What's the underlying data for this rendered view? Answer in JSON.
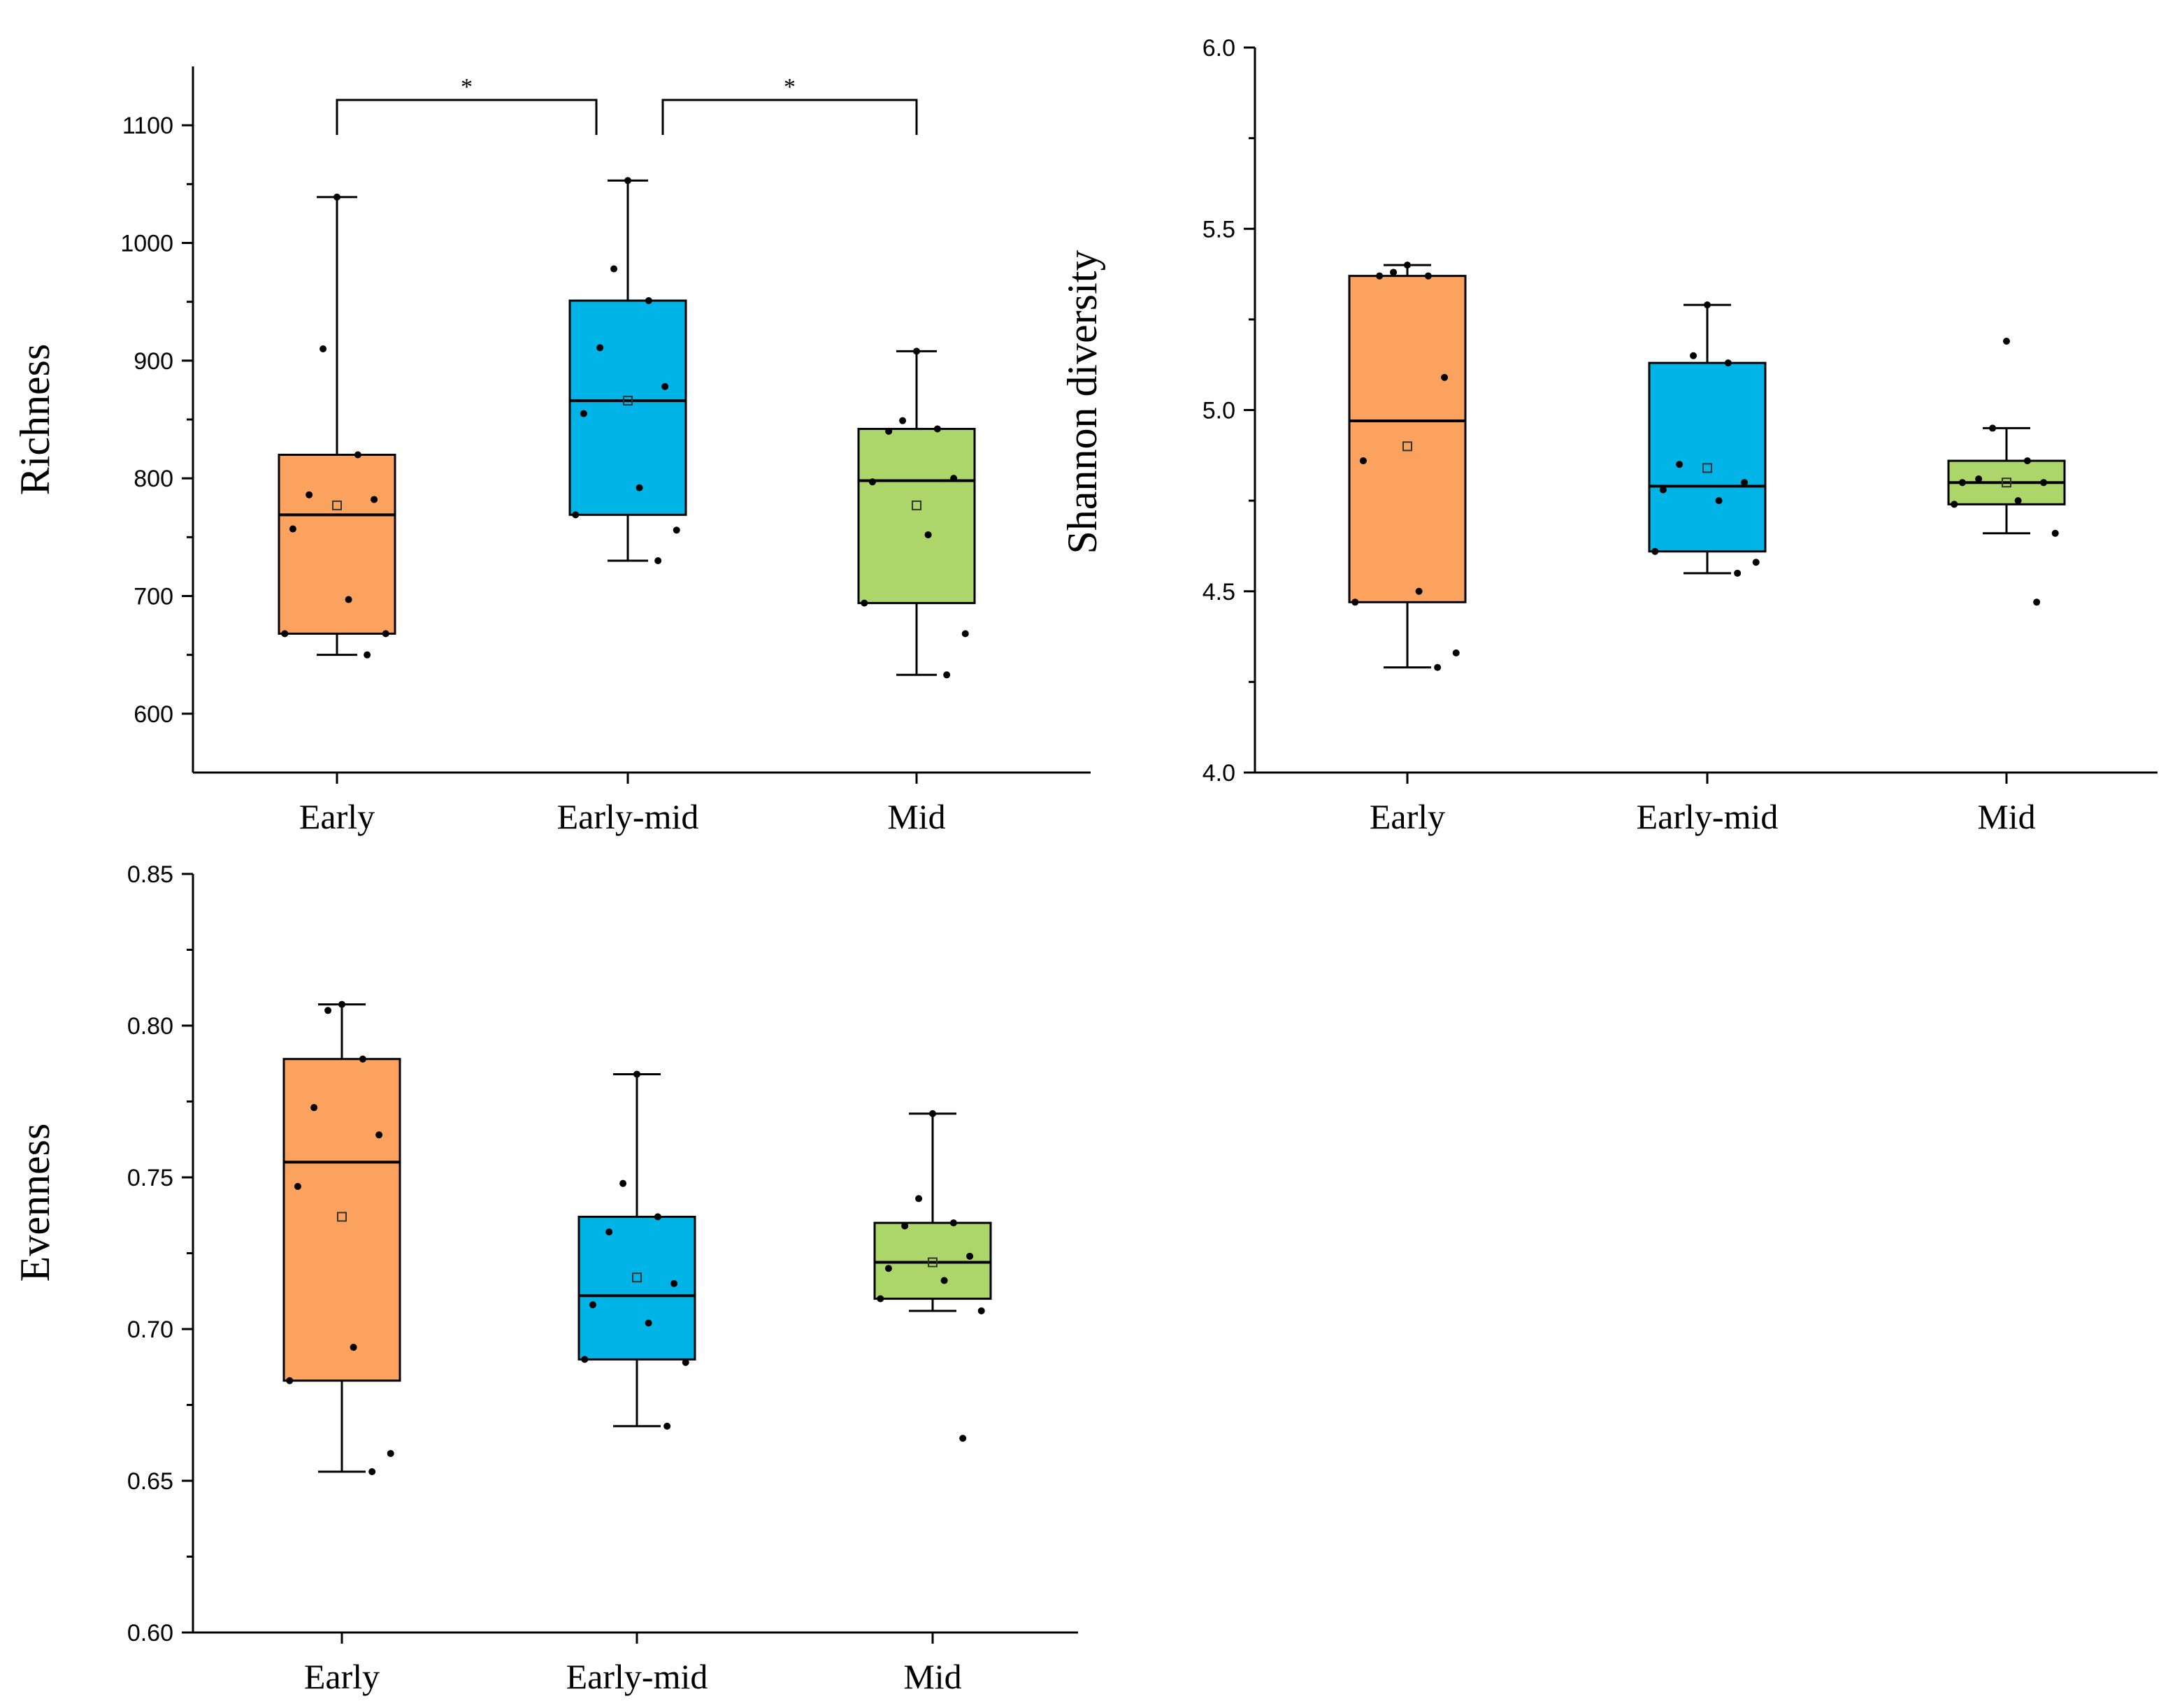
{
  "chart_data": [
    {
      "type": "box",
      "ylabel": "Richness",
      "ylim": [
        550,
        1150
      ],
      "yticks": [
        600,
        700,
        800,
        900,
        1000,
        1100
      ],
      "tick_labels": [
        "600",
        "700",
        "800",
        "900",
        "1000",
        "1100"
      ],
      "categories": [
        "Early",
        "Early-mid",
        "Mid"
      ],
      "colors": [
        "#FBA35E",
        "#00B4E8",
        "#ADD66A"
      ],
      "boxes": [
        {
          "category": "Early",
          "whisker_low": 650,
          "q1": 668,
          "median": 769,
          "q3": 820,
          "whisker_high": 1039,
          "mean": 777,
          "points": [
            1039,
            910,
            820,
            786,
            782,
            757,
            697,
            668,
            668,
            650
          ]
        },
        {
          "category": "Early-mid",
          "whisker_low": 730,
          "q1": 769,
          "median": 866,
          "q3": 951,
          "whisker_high": 1053,
          "mean": 866,
          "points": [
            1053,
            978,
            951,
            911,
            878,
            855,
            792,
            769,
            756,
            730
          ]
        },
        {
          "category": "Mid",
          "whisker_low": 633,
          "q1": 694,
          "median": 798,
          "q3": 842,
          "whisker_high": 908,
          "mean": 777,
          "points": [
            908,
            849,
            842,
            840,
            800,
            797,
            752,
            694,
            668,
            633
          ]
        }
      ],
      "significance": [
        {
          "from": "Early",
          "to": "Early-mid",
          "label": "*"
        },
        {
          "from": "Early-mid",
          "to": "Mid",
          "label": "*"
        }
      ]
    },
    {
      "type": "box",
      "ylabel": "Shannon diversity",
      "ylim": [
        4.0,
        6.0
      ],
      "yticks": [
        4.0,
        4.5,
        5.0,
        5.5,
        6.0
      ],
      "tick_labels": [
        "4.0",
        "4.5",
        "5.0",
        "5.5",
        "6.0"
      ],
      "categories": [
        "Early",
        "Early-mid",
        "Mid"
      ],
      "colors": [
        "#FBA35E",
        "#00B4E8",
        "#ADD66A"
      ],
      "boxes": [
        {
          "category": "Early",
          "whisker_low": 4.29,
          "q1": 4.47,
          "median": 4.97,
          "q3": 5.37,
          "whisker_high": 5.4,
          "mean": 4.9,
          "points": [
            5.4,
            5.38,
            5.37,
            5.37,
            5.09,
            4.86,
            4.5,
            4.47,
            4.33,
            4.29
          ]
        },
        {
          "category": "Early-mid",
          "whisker_low": 4.55,
          "q1": 4.61,
          "median": 4.79,
          "q3": 5.13,
          "whisker_high": 5.29,
          "mean": 4.84,
          "points": [
            5.29,
            5.15,
            5.13,
            4.85,
            4.8,
            4.78,
            4.75,
            4.61,
            4.58,
            4.55
          ]
        },
        {
          "category": "Mid",
          "whisker_low": 4.66,
          "q1": 4.74,
          "median": 4.8,
          "q3": 4.86,
          "whisker_high": 4.95,
          "mean": 4.8,
          "points": [
            5.19,
            4.95,
            4.86,
            4.81,
            4.8,
            4.8,
            4.75,
            4.74,
            4.66,
            4.47
          ]
        }
      ]
    },
    {
      "type": "box",
      "ylabel": "Evenness",
      "ylim": [
        0.6,
        0.85
      ],
      "yticks": [
        0.6,
        0.65,
        0.7,
        0.75,
        0.8,
        0.85
      ],
      "tick_labels": [
        "0.60",
        "0.65",
        "0.70",
        "0.75",
        "0.80",
        "0.85"
      ],
      "categories": [
        "Early",
        "Early-mid",
        "Mid"
      ],
      "colors": [
        "#FBA35E",
        "#00B4E8",
        "#ADD66A"
      ],
      "boxes": [
        {
          "category": "Early",
          "whisker_low": 0.653,
          "q1": 0.683,
          "median": 0.755,
          "q3": 0.789,
          "whisker_high": 0.807,
          "mean": 0.737,
          "points": [
            0.807,
            0.805,
            0.789,
            0.773,
            0.764,
            0.747,
            0.694,
            0.683,
            0.659,
            0.653
          ]
        },
        {
          "category": "Early-mid",
          "whisker_low": 0.668,
          "q1": 0.69,
          "median": 0.711,
          "q3": 0.737,
          "whisker_high": 0.784,
          "mean": 0.717,
          "points": [
            0.784,
            0.748,
            0.737,
            0.732,
            0.715,
            0.708,
            0.702,
            0.69,
            0.689,
            0.668
          ]
        },
        {
          "category": "Mid",
          "whisker_low": 0.706,
          "q1": 0.71,
          "median": 0.722,
          "q3": 0.735,
          "whisker_high": 0.771,
          "mean": 0.722,
          "points": [
            0.771,
            0.743,
            0.735,
            0.734,
            0.724,
            0.72,
            0.716,
            0.71,
            0.706,
            0.664
          ]
        }
      ]
    }
  ]
}
